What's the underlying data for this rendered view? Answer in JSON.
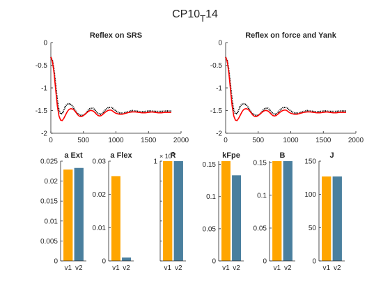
{
  "figure": {
    "title_main": "CP10",
    "title_sub": "T",
    "title_tail": "14"
  },
  "colors": {
    "v1": "#FFA500",
    "v2": "#4A7F9E",
    "measured": "#000000",
    "model": "#FF0000",
    "axis": "#262626"
  },
  "chart_data": [
    {
      "type": "line",
      "title": "Reflex on SRS",
      "xlim": [
        0,
        2000
      ],
      "ylim": [
        -2,
        0
      ],
      "xticks": [
        0,
        500,
        1000,
        1500,
        2000
      ],
      "yticks": [
        0,
        -0.5,
        -1,
        -1.5,
        -2
      ],
      "series": [
        {
          "color": "#000000",
          "style": "dotted",
          "x": [
            0,
            25,
            50,
            75,
            100,
            125,
            150,
            175,
            200,
            225,
            250,
            275,
            300,
            325,
            350,
            375,
            400,
            425,
            450,
            475,
            500,
            525,
            550,
            575,
            600,
            625,
            650,
            675,
            700,
            725,
            750,
            775,
            800,
            825,
            850,
            875,
            900,
            925,
            950,
            975,
            1000,
            1050,
            1100,
            1150,
            1200,
            1250,
            1300,
            1350,
            1400,
            1450,
            1500,
            1550,
            1600,
            1650,
            1700,
            1750,
            1800,
            1850
          ],
          "y": [
            -0.32,
            -0.4,
            -0.62,
            -0.95,
            -1.28,
            -1.5,
            -1.57,
            -1.57,
            -1.49,
            -1.4,
            -1.36,
            -1.35,
            -1.36,
            -1.39,
            -1.44,
            -1.5,
            -1.55,
            -1.58,
            -1.6,
            -1.61,
            -1.6,
            -1.58,
            -1.54,
            -1.49,
            -1.46,
            -1.45,
            -1.45,
            -1.48,
            -1.53,
            -1.56,
            -1.58,
            -1.58,
            -1.55,
            -1.5,
            -1.47,
            -1.44,
            -1.43,
            -1.43,
            -1.45,
            -1.48,
            -1.51,
            -1.55,
            -1.56,
            -1.54,
            -1.52,
            -1.5,
            -1.51,
            -1.52,
            -1.53,
            -1.52,
            -1.51,
            -1.51,
            -1.52,
            -1.52,
            -1.52,
            -1.51,
            -1.51,
            -1.51
          ]
        },
        {
          "color": "#FF0000",
          "style": "solid",
          "x": [
            0,
            25,
            50,
            75,
            100,
            125,
            150,
            175,
            200,
            225,
            250,
            275,
            300,
            325,
            350,
            375,
            400,
            425,
            450,
            475,
            500,
            525,
            550,
            575,
            600,
            625,
            650,
            675,
            700,
            725,
            750,
            775,
            800,
            825,
            850,
            875,
            900,
            925,
            950,
            975,
            1000,
            1050,
            1100,
            1150,
            1200,
            1250,
            1300,
            1350,
            1400,
            1450,
            1500,
            1550,
            1600,
            1650,
            1700,
            1750,
            1800,
            1850
          ],
          "y": [
            -0.32,
            -0.42,
            -0.68,
            -1.05,
            -1.4,
            -1.62,
            -1.71,
            -1.72,
            -1.67,
            -1.6,
            -1.53,
            -1.48,
            -1.46,
            -1.46,
            -1.48,
            -1.52,
            -1.57,
            -1.61,
            -1.63,
            -1.63,
            -1.61,
            -1.58,
            -1.55,
            -1.52,
            -1.5,
            -1.5,
            -1.51,
            -1.54,
            -1.58,
            -1.61,
            -1.62,
            -1.61,
            -1.58,
            -1.55,
            -1.52,
            -1.5,
            -1.49,
            -1.49,
            -1.51,
            -1.54,
            -1.56,
            -1.58,
            -1.58,
            -1.56,
            -1.54,
            -1.53,
            -1.53,
            -1.54,
            -1.55,
            -1.55,
            -1.54,
            -1.53,
            -1.54,
            -1.55,
            -1.55,
            -1.54,
            -1.54,
            -1.54
          ]
        }
      ]
    },
    {
      "type": "line",
      "title": "Reflex on force and Yank",
      "xlim": [
        0,
        2000
      ],
      "ylim": [
        -2,
        0
      ],
      "xticks": [
        0,
        500,
        1000,
        1500,
        2000
      ],
      "yticks": [
        0,
        -0.5,
        -1,
        -1.5,
        -2
      ],
      "series": [
        {
          "color": "#000000",
          "style": "dotted",
          "x": [
            0,
            25,
            50,
            75,
            100,
            125,
            150,
            175,
            200,
            225,
            250,
            275,
            300,
            325,
            350,
            375,
            400,
            425,
            450,
            475,
            500,
            525,
            550,
            575,
            600,
            625,
            650,
            675,
            700,
            725,
            750,
            775,
            800,
            825,
            850,
            875,
            900,
            925,
            950,
            975,
            1000,
            1050,
            1100,
            1150,
            1200,
            1250,
            1300,
            1350,
            1400,
            1450,
            1500,
            1550,
            1600,
            1650,
            1700,
            1750,
            1800,
            1850
          ],
          "y": [
            -0.32,
            -0.4,
            -0.62,
            -0.95,
            -1.28,
            -1.5,
            -1.57,
            -1.57,
            -1.49,
            -1.4,
            -1.36,
            -1.35,
            -1.36,
            -1.39,
            -1.44,
            -1.5,
            -1.55,
            -1.58,
            -1.6,
            -1.61,
            -1.6,
            -1.58,
            -1.54,
            -1.49,
            -1.46,
            -1.45,
            -1.45,
            -1.48,
            -1.53,
            -1.56,
            -1.58,
            -1.58,
            -1.55,
            -1.5,
            -1.47,
            -1.44,
            -1.43,
            -1.43,
            -1.45,
            -1.48,
            -1.51,
            -1.55,
            -1.56,
            -1.54,
            -1.52,
            -1.5,
            -1.51,
            -1.52,
            -1.53,
            -1.52,
            -1.51,
            -1.51,
            -1.52,
            -1.52,
            -1.52,
            -1.51,
            -1.51,
            -1.51
          ]
        },
        {
          "color": "#FF0000",
          "style": "solid",
          "x": [
            0,
            25,
            50,
            75,
            100,
            125,
            150,
            175,
            200,
            225,
            250,
            275,
            300,
            325,
            350,
            375,
            400,
            425,
            450,
            475,
            500,
            525,
            550,
            575,
            600,
            625,
            650,
            675,
            700,
            725,
            750,
            775,
            800,
            825,
            850,
            875,
            900,
            925,
            950,
            975,
            1000,
            1050,
            1100,
            1150,
            1200,
            1250,
            1300,
            1350,
            1400,
            1450,
            1500,
            1550,
            1600,
            1650,
            1700,
            1750,
            1800,
            1850
          ],
          "y": [
            -0.32,
            -0.42,
            -0.68,
            -1.05,
            -1.4,
            -1.62,
            -1.71,
            -1.72,
            -1.67,
            -1.6,
            -1.53,
            -1.48,
            -1.46,
            -1.46,
            -1.48,
            -1.52,
            -1.57,
            -1.61,
            -1.63,
            -1.63,
            -1.61,
            -1.58,
            -1.55,
            -1.52,
            -1.5,
            -1.5,
            -1.51,
            -1.54,
            -1.58,
            -1.61,
            -1.62,
            -1.61,
            -1.58,
            -1.55,
            -1.52,
            -1.5,
            -1.49,
            -1.49,
            -1.51,
            -1.54,
            -1.56,
            -1.58,
            -1.58,
            -1.56,
            -1.54,
            -1.53,
            -1.53,
            -1.54,
            -1.55,
            -1.55,
            -1.54,
            -1.53,
            -1.54,
            -1.55,
            -1.55,
            -1.54,
            -1.54,
            -1.54
          ]
        }
      ]
    },
    {
      "type": "bar",
      "title": "a Ext",
      "categories": [
        "v1",
        "v2"
      ],
      "values": [
        0.0229,
        0.0233
      ],
      "ylim": [
        0,
        0.025
      ],
      "yticks": [
        0,
        0.005,
        0.01,
        0.015,
        0.02,
        0.025
      ],
      "yticklabels": [
        "0",
        "0.005",
        "0.01",
        "0.015",
        "0.02",
        "0.025"
      ]
    },
    {
      "type": "bar",
      "title": "a Flex",
      "categories": [
        "v1",
        "v2"
      ],
      "values": [
        0.0255,
        0.001
      ],
      "ylim": [
        0,
        0.03
      ],
      "yticks": [
        0,
        0.01,
        0.02,
        0.03
      ],
      "yticklabels": [
        "0",
        "0.01",
        "0.02",
        "0.03"
      ]
    },
    {
      "type": "bar",
      "title": "R",
      "categories": [
        "v1",
        "v2"
      ],
      "values": [
        1,
        1
      ],
      "ylim": [
        0,
        1
      ],
      "yticks": [
        0,
        0.2,
        0.4,
        0.6,
        0.8,
        1
      ],
      "yticklabels": [
        "",
        "",
        "",
        "",
        "",
        "1"
      ],
      "exponent_prefix": "× 10",
      "exponent_digit": "5"
    },
    {
      "type": "bar",
      "title": "kFpe",
      "categories": [
        "v1",
        "v2"
      ],
      "values": [
        0.155,
        0.133
      ],
      "ylim": [
        0,
        0.155
      ],
      "yticks": [
        0,
        0.05,
        0.1,
        0.15
      ],
      "yticklabels": [
        "0",
        "0.05",
        "0.1",
        "0.15"
      ]
    },
    {
      "type": "bar",
      "title": "B",
      "categories": [
        "v1",
        "v2"
      ],
      "values": [
        0.152,
        0.152
      ],
      "ylim": [
        0,
        0.152
      ],
      "yticks": [
        0,
        0.05,
        0.1,
        0.15
      ],
      "yticklabels": [
        "0",
        "0.05",
        "0.1",
        "0.15"
      ]
    },
    {
      "type": "bar",
      "title": "J",
      "categories": [
        "v1",
        "v2"
      ],
      "values": [
        127,
        127
      ],
      "ylim": [
        0,
        150
      ],
      "yticks": [
        0,
        50,
        100,
        150
      ],
      "yticklabels": [
        "0",
        "50",
        "100",
        "150"
      ]
    }
  ]
}
